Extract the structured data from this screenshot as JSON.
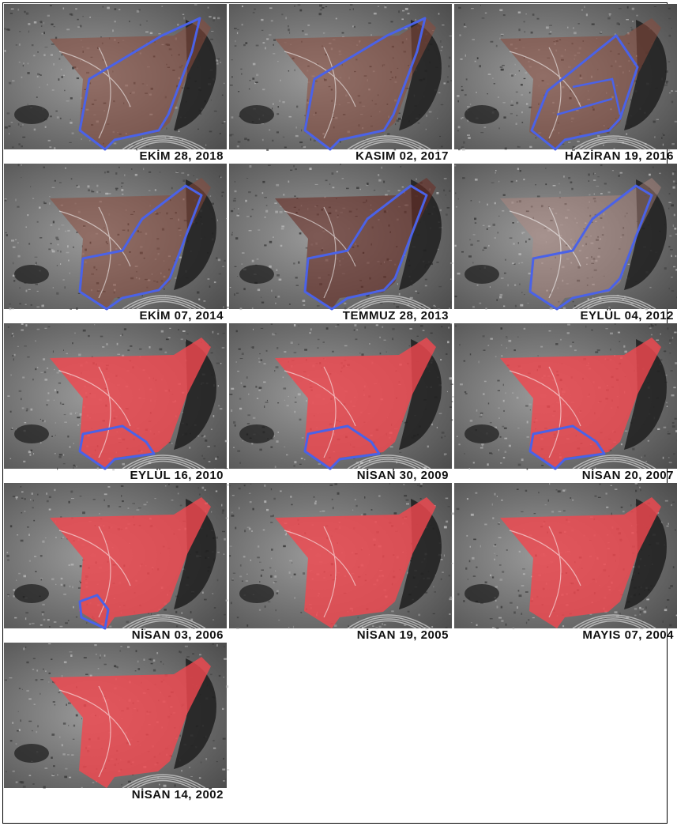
{
  "panels": [
    {
      "caption": "EKİM 28, 2018",
      "overlay": "brown",
      "boundary": "blue-full"
    },
    {
      "caption": "KASIM 02, 2017",
      "overlay": "brown",
      "boundary": "blue-full"
    },
    {
      "caption": "HAZİRAN 19, 2016",
      "overlay": "brown",
      "boundary": "blue-split"
    },
    {
      "caption": "EKİM 07, 2014",
      "overlay": "brown",
      "boundary": "blue-partial"
    },
    {
      "caption": "TEMMUZ 28, 2013",
      "overlay": "brown-dark",
      "boundary": "blue-partial"
    },
    {
      "caption": "EYLÜL 04, 2012",
      "overlay": "brown-light",
      "boundary": "blue-partial"
    },
    {
      "caption": "EYLÜL 16, 2010",
      "overlay": "red",
      "boundary": "blue-small"
    },
    {
      "caption": "NİSAN 30, 2009",
      "overlay": "red",
      "boundary": "blue-small"
    },
    {
      "caption": "NİSAN 20, 2007",
      "overlay": "red",
      "boundary": "blue-small"
    },
    {
      "caption": "NİSAN 03, 2006",
      "overlay": "red",
      "boundary": "blue-corner"
    },
    {
      "caption": "NİSAN 19, 2005",
      "overlay": "red",
      "boundary": "none"
    },
    {
      "caption": "MAYIS 07, 2004",
      "overlay": "red",
      "boundary": "none"
    },
    {
      "caption": "NİSAN 14, 2002",
      "overlay": "red",
      "boundary": "none"
    }
  ],
  "colors": {
    "brown": "#8a4a3c",
    "brown_dark": "#6a2e26",
    "brown_light": "#b58a80",
    "red": "#f0484f",
    "boundary": "#4a62e8",
    "terrain_dark": "#3a3a3a",
    "terrain_light": "#b4b4b4"
  }
}
